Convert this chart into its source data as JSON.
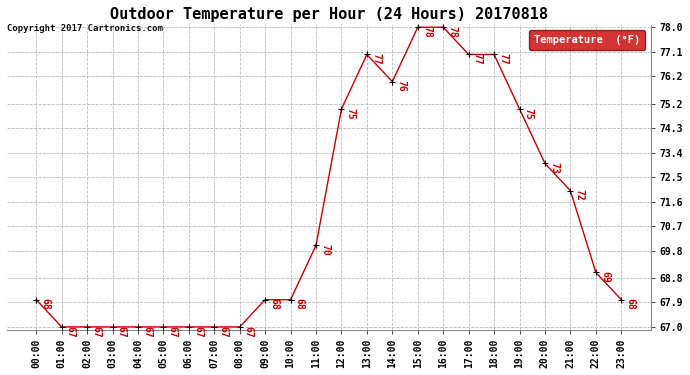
{
  "title": "Outdoor Temperature per Hour (24 Hours) 20170818",
  "copyright": "Copyright 2017 Cartronics.com",
  "legend_label": "Temperature  (°F)",
  "hours": [
    "00:00",
    "01:00",
    "02:00",
    "03:00",
    "04:00",
    "05:00",
    "06:00",
    "07:00",
    "08:00",
    "09:00",
    "10:00",
    "11:00",
    "12:00",
    "13:00",
    "14:00",
    "15:00",
    "16:00",
    "17:00",
    "18:00",
    "19:00",
    "20:00",
    "21:00",
    "22:00",
    "23:00"
  ],
  "temps": [
    68,
    67,
    67,
    67,
    67,
    67,
    67,
    67,
    67,
    68,
    68,
    70,
    75,
    77,
    76,
    78,
    78,
    77,
    77,
    75,
    73,
    72,
    69,
    68
  ],
  "line_color": "#cc0000",
  "marker_color": "#000000",
  "background_color": "#ffffff",
  "grid_color": "#bbbbbb",
  "ylim_min": 67.0,
  "ylim_max": 78.0,
  "yticks": [
    67.0,
    67.9,
    68.8,
    69.8,
    70.7,
    71.6,
    72.5,
    73.4,
    74.3,
    75.2,
    76.2,
    77.1,
    78.0
  ],
  "title_fontsize": 11,
  "label_fontsize": 7,
  "annot_fontsize": 7,
  "legend_bg": "#cc0000",
  "legend_fg": "#ffffff"
}
